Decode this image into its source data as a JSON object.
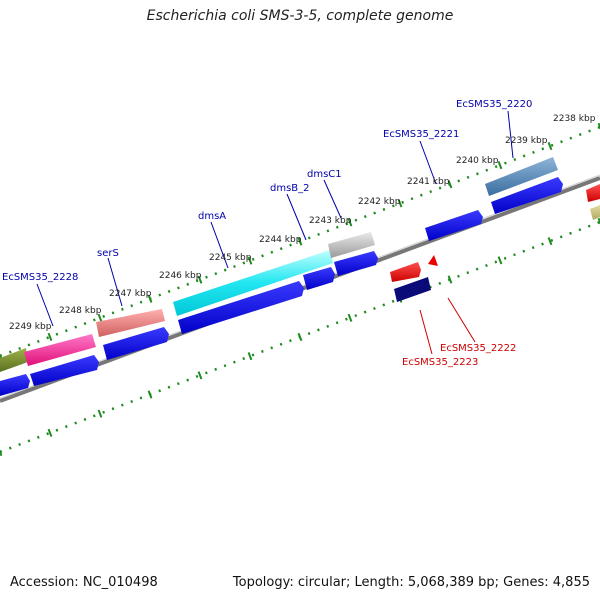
{
  "title": "Escherichia coli SMS-3-5, complete genome",
  "footer": {
    "accession": "Accession: NC_010498",
    "summary": "Topology: circular; Length: 5,068,389 bp; Genes: 4,855"
  },
  "colors": {
    "backbone": "#777777",
    "tick": "#1f8a1f",
    "cds": "#0000ee",
    "gene_label_forward": "#0000aa",
    "gene_label_reverse": "#cc0000"
  },
  "kbp_ticks": [
    "2238 kbp",
    "2239 kbp",
    "2240 kbp",
    "2241 kbp",
    "2242 kbp",
    "2243 kbp",
    "2244 kbp",
    "2245 kbp",
    "2246 kbp",
    "2247 kbp",
    "2248 kbp",
    "2249 kbp"
  ],
  "gene_labels": [
    {
      "text": "EcSMS35_2220",
      "strand": "forward"
    },
    {
      "text": "EcSMS35_2221",
      "strand": "forward"
    },
    {
      "text": "dmsC1",
      "strand": "forward"
    },
    {
      "text": "dmsB_2",
      "strand": "forward"
    },
    {
      "text": "dmsA",
      "strand": "forward"
    },
    {
      "text": "serS",
      "strand": "forward"
    },
    {
      "text": "EcSMS35_2228",
      "strand": "forward"
    },
    {
      "text": "EcSMS35_2222",
      "strand": "reverse"
    },
    {
      "text": "EcSMS35_2223",
      "strand": "reverse"
    }
  ]
}
